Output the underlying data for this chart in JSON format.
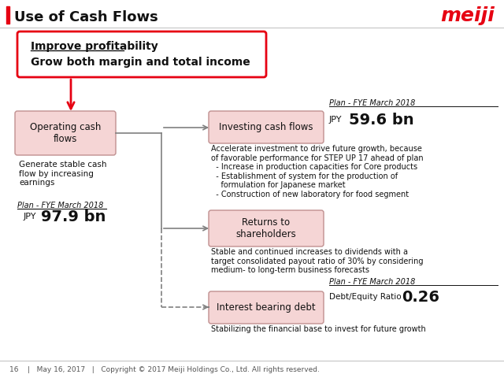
{
  "title": "Use of Cash Flows",
  "meiji_text": "meiji",
  "meiji_color": "#e60012",
  "title_bar_color": "#e60012",
  "bg_color": "#ffffff",
  "box_bg_pink": "#f5d5d5",
  "box_border_pink": "#c09090",
  "top_box_border": "#e60012",
  "top_box_bg": "#ffffff",
  "arrow_color": "#e60012",
  "line_color": "#808080",
  "footer_line_color": "#cccccc",
  "footer_text": "16    |   May 16, 2017   |   Copyright © 2017 Meiji Holdings Co., Ltd. All rights reserved.",
  "top_box_line1": "Improve profitability",
  "top_box_line2": "Grow both margin and total income",
  "left_box_title": "Operating cash\nflows",
  "left_box_desc": "Generate stable cash\nflow by increasing\nearnings",
  "left_plan_label": "Plan - FYE March 2018",
  "left_plan_value_small": "JPY",
  "left_plan_value_big": "97.9 bn",
  "boxes": [
    {
      "label": "Investing cash flows",
      "plan_label": "Plan - FYE March 2018",
      "plan_value_small": "JPY",
      "plan_value_big": "59.6 bn",
      "desc": "Accelerate investment to drive future growth, because\nof favorable performance for STEP UP 17 ahead of plan\n  - Increase in production capacities for Core products\n  - Establishment of system for the production of\n    formulation for Japanese market\n  - Construction of new laboratory for food segment",
      "dashed": false
    },
    {
      "label": "Returns to\nshareholders",
      "plan_label": "",
      "plan_value_small": "",
      "plan_value_big": "",
      "desc": "Stable and continued increases to dividends with a\ntarget consolidated payout ratio of 30% by considering\nmedium- to long-term business forecasts",
      "dashed": false
    },
    {
      "label": "Interest bearing debt",
      "plan_label": "Plan - FYE March 2018",
      "plan_value_small": "Debt/Equity Ratio",
      "plan_value_big": "0.26",
      "desc": "Stabilizing the financial base to invest for future growth",
      "dashed": true
    }
  ]
}
